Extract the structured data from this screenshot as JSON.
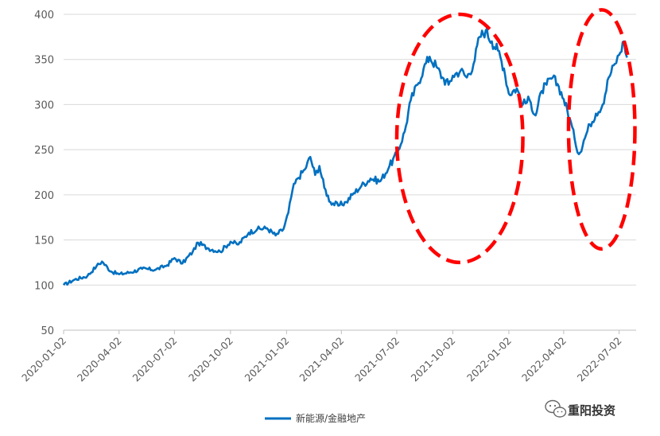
{
  "chart_data": {
    "type": "line",
    "title": "",
    "xlabel": "",
    "ylabel": "",
    "ylim": [
      50,
      400
    ],
    "y_ticks": [
      50,
      100,
      150,
      200,
      250,
      300,
      350,
      400
    ],
    "x_ticks": [
      "2020-01-02",
      "2020-04-02",
      "2020-07-02",
      "2020-10-02",
      "2021-01-02",
      "2021-04-02",
      "2021-07-02",
      "2021-10-02",
      "2022-01-02",
      "2022-04-02",
      "2022-07-02"
    ],
    "grid": "horizontal",
    "legend_position": "bottom",
    "series": [
      {
        "name": "新能源/金融地产",
        "color": "#0070C0",
        "points": [
          [
            "2020-01-02",
            100
          ],
          [
            "2020-01-20",
            106
          ],
          [
            "2020-02-10",
            110
          ],
          [
            "2020-02-25",
            121
          ],
          [
            "2020-03-05",
            126
          ],
          [
            "2020-03-20",
            115
          ],
          [
            "2020-04-02",
            112
          ],
          [
            "2020-04-20",
            114
          ],
          [
            "2020-05-10",
            118
          ],
          [
            "2020-06-01",
            117
          ],
          [
            "2020-06-20",
            122
          ],
          [
            "2020-07-02",
            130
          ],
          [
            "2020-07-15",
            124
          ],
          [
            "2020-08-01",
            137
          ],
          [
            "2020-08-10",
            147
          ],
          [
            "2020-08-25",
            141
          ],
          [
            "2020-09-15",
            137
          ],
          [
            "2020-10-02",
            148
          ],
          [
            "2020-10-15",
            145
          ],
          [
            "2020-11-01",
            158
          ],
          [
            "2020-11-15",
            162
          ],
          [
            "2020-12-01",
            163
          ],
          [
            "2020-12-15",
            155
          ],
          [
            "2020-12-28",
            162
          ],
          [
            "2021-01-05",
            180
          ],
          [
            "2021-01-12",
            206
          ],
          [
            "2021-01-20",
            218
          ],
          [
            "2021-02-01",
            228
          ],
          [
            "2021-02-10",
            242
          ],
          [
            "2021-02-18",
            222
          ],
          [
            "2021-02-25",
            232
          ],
          [
            "2021-03-05",
            208
          ],
          [
            "2021-03-15",
            192
          ],
          [
            "2021-03-28",
            188
          ],
          [
            "2021-04-10",
            192
          ],
          [
            "2021-04-20",
            200
          ],
          [
            "2021-05-05",
            210
          ],
          [
            "2021-05-20",
            218
          ],
          [
            "2021-06-05",
            215
          ],
          [
            "2021-06-20",
            232
          ],
          [
            "2021-07-02",
            245
          ],
          [
            "2021-07-15",
            270
          ],
          [
            "2021-07-25",
            305
          ],
          [
            "2021-08-05",
            322
          ],
          [
            "2021-08-15",
            340
          ],
          [
            "2021-08-25",
            353
          ],
          [
            "2021-09-05",
            342
          ],
          [
            "2021-09-15",
            330
          ],
          [
            "2021-09-25",
            322
          ],
          [
            "2021-10-02",
            332
          ],
          [
            "2021-10-15",
            338
          ],
          [
            "2021-10-25",
            330
          ],
          [
            "2021-11-05",
            345
          ],
          [
            "2021-11-15",
            375
          ],
          [
            "2021-11-25",
            382
          ],
          [
            "2021-12-05",
            370
          ],
          [
            "2021-12-15",
            360
          ],
          [
            "2021-12-25",
            340
          ],
          [
            "2022-01-02",
            312
          ],
          [
            "2022-01-15",
            318
          ],
          [
            "2022-01-25",
            300
          ],
          [
            "2022-02-05",
            305
          ],
          [
            "2022-02-15",
            288
          ],
          [
            "2022-02-25",
            315
          ],
          [
            "2022-03-05",
            322
          ],
          [
            "2022-03-15",
            330
          ],
          [
            "2022-03-25",
            320
          ],
          [
            "2022-04-02",
            306
          ],
          [
            "2022-04-12",
            285
          ],
          [
            "2022-04-20",
            262
          ],
          [
            "2022-04-27",
            245
          ],
          [
            "2022-05-05",
            260
          ],
          [
            "2022-05-15",
            278
          ],
          [
            "2022-05-25",
            290
          ],
          [
            "2022-06-05",
            300
          ],
          [
            "2022-06-15",
            330
          ],
          [
            "2022-06-25",
            345
          ],
          [
            "2022-07-02",
            355
          ],
          [
            "2022-07-10",
            370
          ],
          [
            "2022-07-15",
            352
          ]
        ]
      }
    ],
    "annotations": [
      {
        "type": "ellipse",
        "color": "#FF0000",
        "style": "dashed",
        "x_range": [
          "2021-07-02",
          "2022-01-25"
        ],
        "y_range": [
          125,
          400
        ]
      },
      {
        "type": "ellipse",
        "color": "#FF0000",
        "style": "dashed",
        "x_range": [
          "2022-04-10",
          "2022-07-28"
        ],
        "y_range": [
          140,
          405
        ]
      }
    ]
  },
  "watermark": {
    "icon": "wechat-icon",
    "text": "重阳投资"
  }
}
